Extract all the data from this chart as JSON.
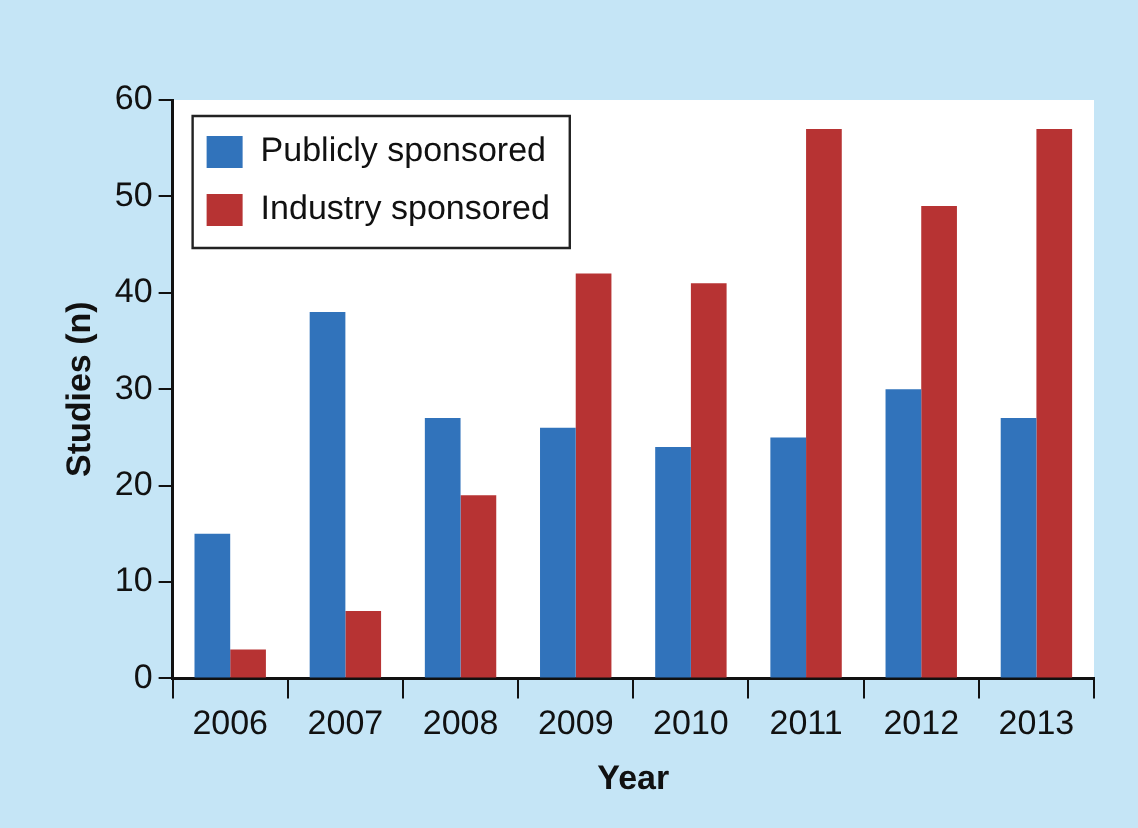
{
  "chart_data": {
    "type": "bar",
    "xlabel": "Year",
    "ylabel": "Studies (n)",
    "categories": [
      "2006",
      "2007",
      "2008",
      "2009",
      "2010",
      "2011",
      "2012",
      "2013"
    ],
    "series": [
      {
        "name": "Publicly sponsored",
        "color": "#3173bb",
        "values": [
          15,
          38,
          27,
          26,
          24,
          25,
          30,
          27
        ]
      },
      {
        "name": "Industry sponsored",
        "color": "#b73333",
        "values": [
          3,
          7,
          19,
          42,
          41,
          57,
          49,
          57
        ]
      }
    ],
    "ylim": [
      0,
      60
    ],
    "yticks": [
      0,
      10,
      20,
      30,
      40,
      50,
      60
    ],
    "grid": false,
    "legend": "top left"
  }
}
